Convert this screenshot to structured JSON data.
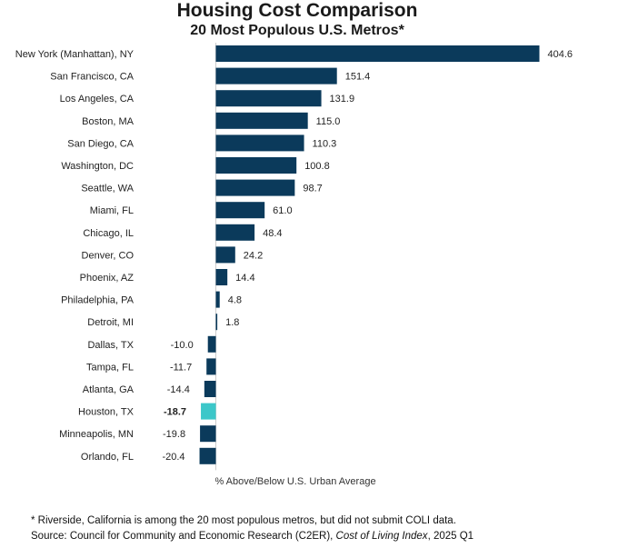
{
  "chart_data": {
    "type": "bar",
    "orientation": "horizontal",
    "title": "Housing Cost Comparison",
    "subtitle": "20 Most Populous U.S. Metros*",
    "xlabel": "% Above/Below U.S. Urban Average",
    "ylabel": "",
    "categories": [
      "New York (Manhattan), NY",
      "San Francisco, CA",
      "Los Angeles, CA",
      "Boston, MA",
      "San Diego, CA",
      "Washington, DC",
      "Seattle, WA",
      "Miami, FL",
      "Chicago, IL",
      "Denver, CO",
      "Phoenix, AZ",
      "Philadelphia, PA",
      "Detroit, MI",
      "Dallas, TX",
      "Tampa, FL",
      "Atlanta, GA",
      "Houston, TX",
      "Minneapolis, MN",
      "Orlando, FL"
    ],
    "values": [
      404.6,
      151.4,
      131.9,
      115.0,
      110.3,
      100.8,
      98.7,
      61.0,
      48.4,
      24.2,
      14.4,
      4.8,
      1.8,
      -10.0,
      -11.7,
      -14.4,
      -18.7,
      -19.8,
      -20.4
    ],
    "highlight_category": "Houston, TX",
    "colors": {
      "bar": "#0b3a5b",
      "highlight": "#3cc7c9"
    },
    "grid": false,
    "legend": "none"
  },
  "footnote": "* Riverside, California is among the 20 most populous metros, but did not submit COLI data.",
  "source": {
    "prefix": "Source: Council for Community and Economic Research (C2ER), ",
    "publication": "Cost of Living Index",
    "suffix": ", 2025 Q1"
  }
}
